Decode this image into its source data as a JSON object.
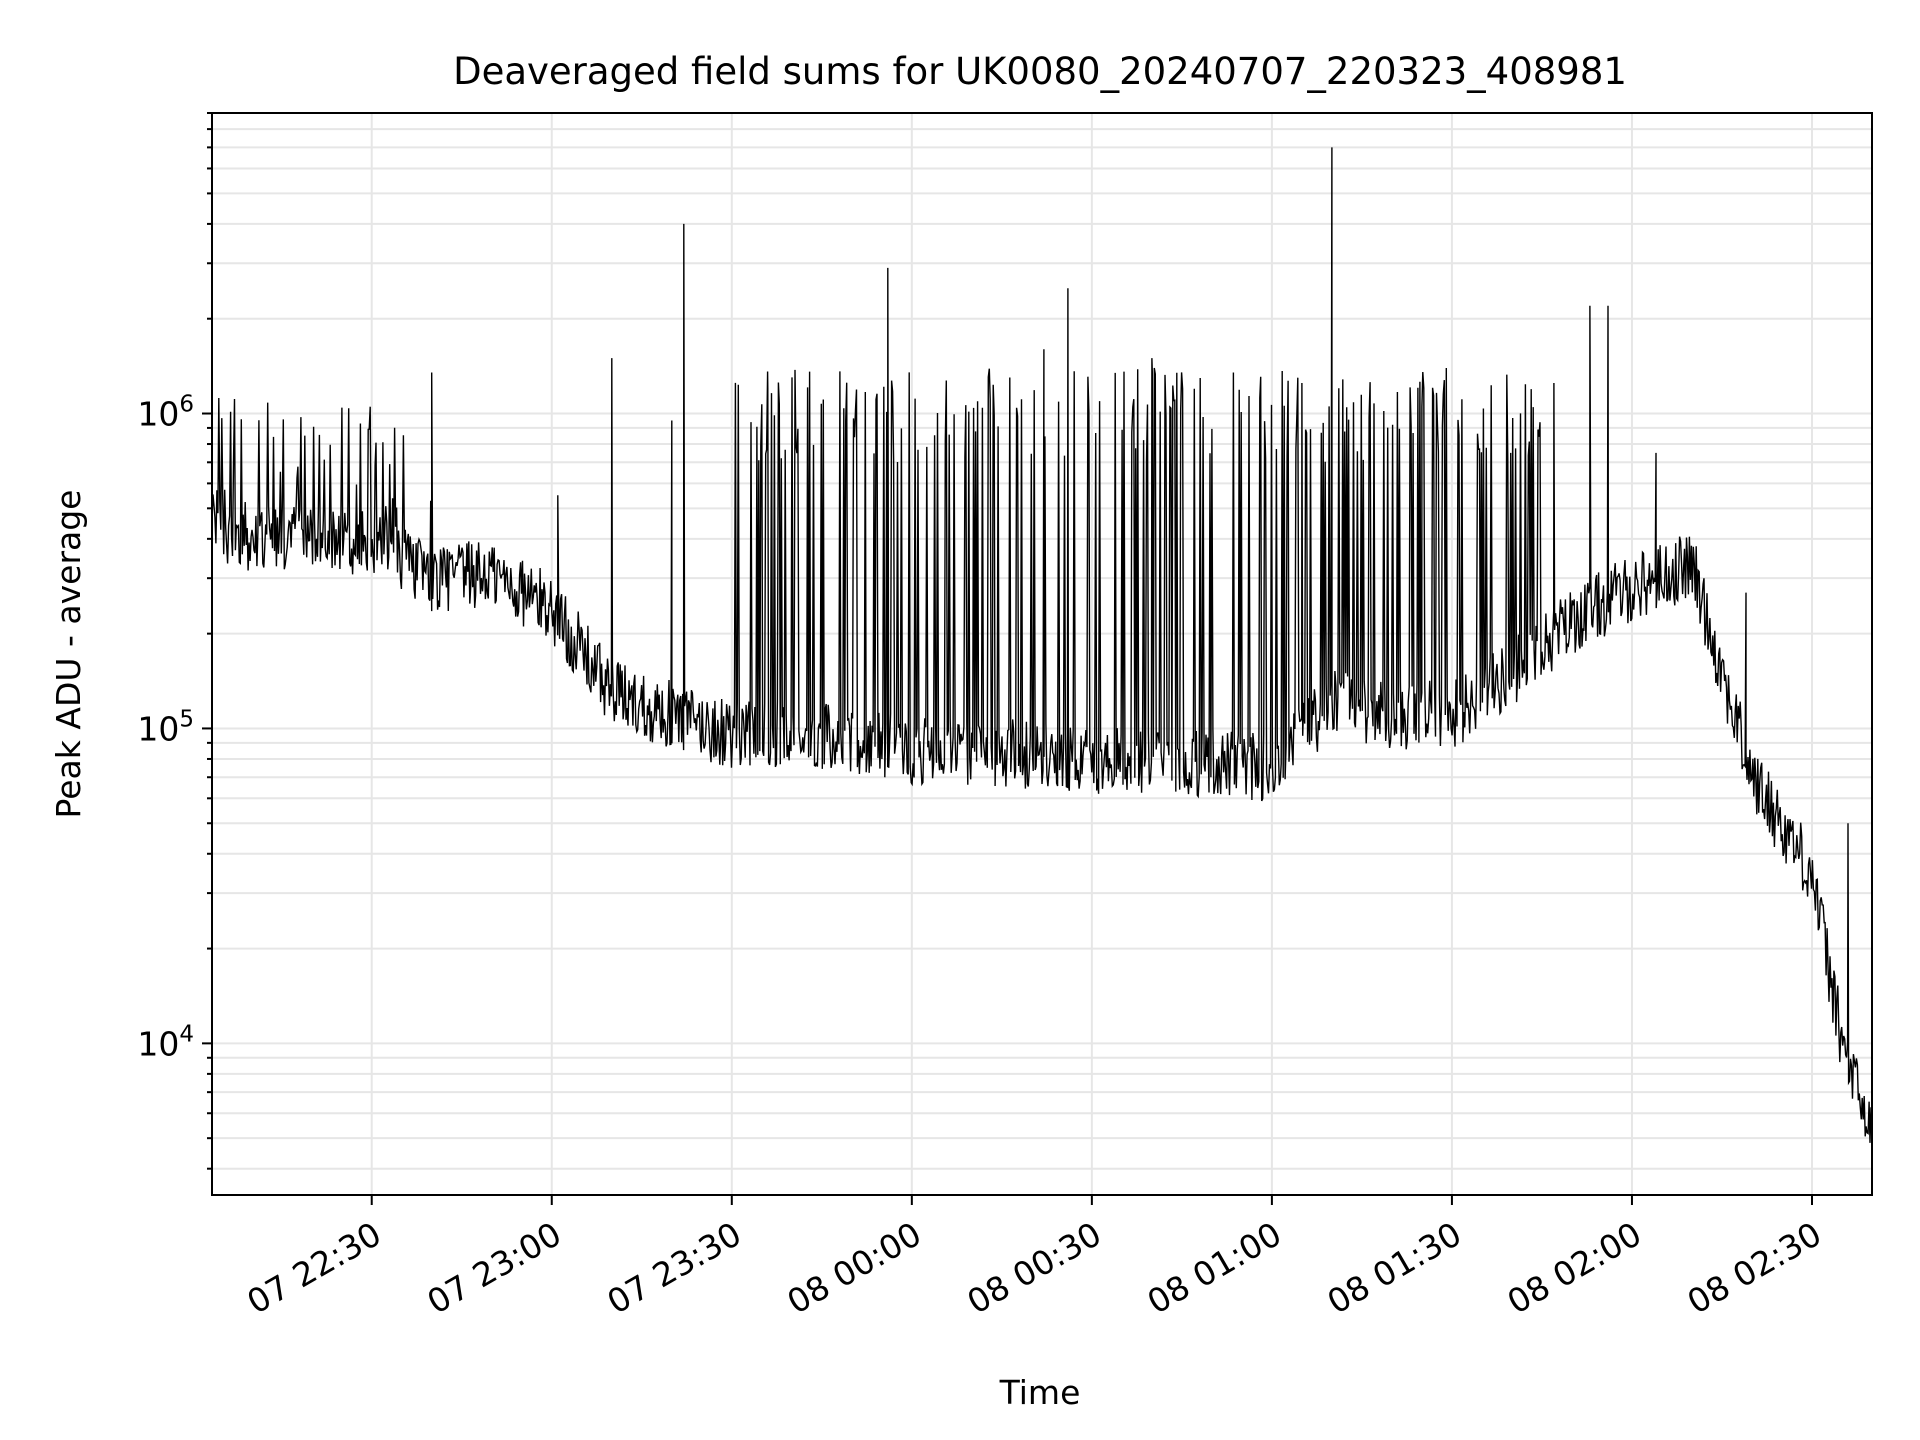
{
  "chart_data": {
    "type": "line",
    "title": "Deaveraged field sums for UK0080_20240707_220323_408981",
    "xlabel": "Time",
    "ylabel": "Peak ADU - average",
    "yscale": "log",
    "ylim": [
      3300,
      9000000
    ],
    "xlim": [
      "2024-07-07 22:03:23",
      "2024-07-08 02:40:00"
    ],
    "grid": "on",
    "x_ticks": [
      "07 22:30",
      "07 23:00",
      "07 23:30",
      "08 00:00",
      "08 00:30",
      "08 01:00",
      "08 01:30",
      "08 02:00",
      "08 02:30"
    ],
    "x_tick_times": [
      "2024-07-07 22:30",
      "2024-07-07 23:00",
      "2024-07-07 23:30",
      "2024-07-08 00:00",
      "2024-07-08 00:30",
      "2024-07-08 01:00",
      "2024-07-08 01:30",
      "2024-07-08 02:00",
      "2024-07-08 02:30"
    ],
    "y_ticks": [
      {
        "value": 10000,
        "base": "10",
        "exp": "4"
      },
      {
        "value": 100000,
        "base": "10",
        "exp": "5"
      },
      {
        "value": 1000000,
        "base": "10",
        "exp": "6"
      }
    ],
    "colors": {
      "line": "#000000",
      "grid": "#e6e6e6"
    },
    "series": [
      {
        "x": [
          "2024-07-07 22:03:23",
          "2024-07-07 22:10",
          "2024-07-07 22:20",
          "2024-07-07 22:30",
          "2024-07-07 22:40",
          "2024-07-07 22:50",
          "2024-07-07 23:00",
          "2024-07-07 23:10",
          "2024-07-07 23:20",
          "2024-07-07 23:30",
          "2024-07-07 23:40",
          "2024-07-07 23:50",
          "2024-07-08 00:00",
          "2024-07-08 00:10",
          "2024-07-08 00:20",
          "2024-07-08 00:30",
          "2024-07-08 00:40",
          "2024-07-08 00:50",
          "2024-07-08 01:00",
          "2024-07-08 01:10",
          "2024-07-08 01:20",
          "2024-07-08 01:30",
          "2024-07-08 01:40",
          "2024-07-08 01:50",
          "2024-07-08 02:00",
          "2024-07-08 02:10",
          "2024-07-08 02:20",
          "2024-07-08 02:30",
          "2024-07-08 02:35",
          "2024-07-08 02:40"
        ],
        "y": [
          450000,
          400000,
          420000,
          380000,
          300000,
          310000,
          240000,
          130000,
          110000,
          95000,
          95000,
          92000,
          85000,
          85000,
          82000,
          80000,
          78000,
          78000,
          75000,
          120000,
          110000,
          110000,
          150000,
          220000,
          280000,
          330000,
          70000,
          35000,
          10000,
          5000
        ],
        "spikes": [
          {
            "x": "2024-07-07 22:40",
            "y": 1350000
          },
          {
            "x": "2024-07-07 23:01",
            "y": 550000
          },
          {
            "x": "2024-07-07 23:10",
            "y": 1500000
          },
          {
            "x": "2024-07-07 23:20",
            "y": 950000
          },
          {
            "x": "2024-07-07 23:22",
            "y": 4000000
          },
          {
            "x": "2024-07-07 23:36",
            "y": 1200000
          },
          {
            "x": "2024-07-07 23:56",
            "y": 2900000
          },
          {
            "x": "2024-07-08 00:22",
            "y": 1600000
          },
          {
            "x": "2024-07-08 00:26",
            "y": 2500000
          },
          {
            "x": "2024-07-08 00:40",
            "y": 1500000
          },
          {
            "x": "2024-07-08 01:05",
            "y": 1250000
          },
          {
            "x": "2024-07-08 01:10",
            "y": 7000000
          },
          {
            "x": "2024-07-08 01:25",
            "y": 1050000
          },
          {
            "x": "2024-07-08 01:47",
            "y": 1250000
          },
          {
            "x": "2024-07-08 01:53",
            "y": 2200000
          },
          {
            "x": "2024-07-08 01:56",
            "y": 2200000
          },
          {
            "x": "2024-07-08 02:04",
            "y": 750000
          },
          {
            "x": "2024-07-08 02:19",
            "y": 270000
          },
          {
            "x": "2024-07-08 02:36",
            "y": 50000
          }
        ]
      }
    ]
  }
}
